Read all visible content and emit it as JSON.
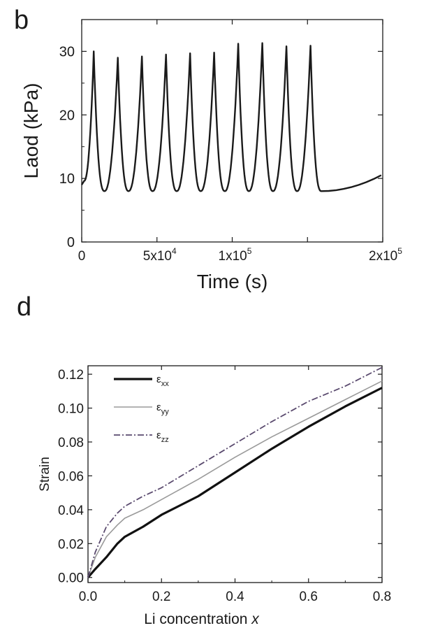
{
  "panels": {
    "b": "b",
    "d": "d"
  },
  "chart_data": [
    {
      "type": "line",
      "panel": "b",
      "title": "",
      "xlabel": "Time (s)",
      "ylabel": "Laod (kPa)",
      "xlim": [
        0,
        200000
      ],
      "ylim": [
        0,
        35
      ],
      "yticks": [
        0,
        10,
        20,
        30
      ],
      "ytick_labels": [
        "0",
        "10",
        "20",
        "30"
      ],
      "xticks": [
        0,
        50000,
        100000,
        150000,
        200000
      ],
      "xtick_labels": [
        {
          "base": "0",
          "exp": ""
        },
        {
          "base": "5x10",
          "exp": "4"
        },
        {
          "base": "1x10",
          "exp": "5"
        },
        {
          "base": "",
          "exp": ""
        },
        {
          "base": "2x10",
          "exp": "5"
        }
      ],
      "series": [
        {
          "name": "load",
          "color": "#1a1a1a",
          "start_value": 9,
          "end_value": 10.5,
          "cycle_troughs": [
            8,
            8,
            8,
            8,
            8,
            8,
            8,
            8,
            8,
            8
          ],
          "cycle_peaks": [
            {
              "t": 8000,
              "v": 30.0
            },
            {
              "t": 24000,
              "v": 29.0
            },
            {
              "t": 40000,
              "v": 29.2
            },
            {
              "t": 56000,
              "v": 29.5
            },
            {
              "t": 72000,
              "v": 29.7
            },
            {
              "t": 88000,
              "v": 29.8
            },
            {
              "t": 104000,
              "v": 31.2
            },
            {
              "t": 120000,
              "v": 31.3
            },
            {
              "t": 136000,
              "v": 30.8
            },
            {
              "t": 152000,
              "v": 30.9
            }
          ]
        }
      ]
    },
    {
      "type": "line",
      "panel": "d",
      "title": "",
      "xlabel_main": "Li concentration ",
      "xlabel_var": "x",
      "ylabel": "Strain",
      "xlim": [
        0,
        0.8
      ],
      "ylim": [
        -0.003,
        0.125
      ],
      "xticks": [
        0.0,
        0.2,
        0.4,
        0.6,
        0.8
      ],
      "xtick_labels": [
        "0.0",
        "0.2",
        "0.4",
        "0.6",
        "0.8"
      ],
      "yticks": [
        0.0,
        0.02,
        0.04,
        0.06,
        0.08,
        0.1,
        0.12
      ],
      "ytick_labels": [
        "0.00",
        "0.02",
        "0.04",
        "0.06",
        "0.08",
        "0.10",
        "0.12"
      ],
      "legend_position": "top-left",
      "series": [
        {
          "name": "ε",
          "sub": "xx",
          "style": "solid-thick",
          "color": "#111111",
          "x": [
            0.0,
            0.02,
            0.05,
            0.08,
            0.1,
            0.15,
            0.2,
            0.3,
            0.4,
            0.5,
            0.6,
            0.7,
            0.8
          ],
          "y": [
            0.0,
            0.005,
            0.012,
            0.02,
            0.024,
            0.03,
            0.037,
            0.048,
            0.062,
            0.076,
            0.089,
            0.101,
            0.112
          ]
        },
        {
          "name": "ε",
          "sub": "yy",
          "style": "solid-thin",
          "color": "#9a9a9a",
          "x": [
            0.0,
            0.02,
            0.05,
            0.08,
            0.1,
            0.15,
            0.2,
            0.3,
            0.4,
            0.5,
            0.6,
            0.7,
            0.8
          ],
          "y": [
            0.0,
            0.012,
            0.024,
            0.031,
            0.035,
            0.04,
            0.046,
            0.058,
            0.071,
            0.083,
            0.094,
            0.105,
            0.116
          ]
        },
        {
          "name": "ε",
          "sub": "zz",
          "style": "dashdot",
          "color": "#5a4a6e",
          "x": [
            0.0,
            0.02,
            0.05,
            0.08,
            0.1,
            0.15,
            0.2,
            0.3,
            0.4,
            0.5,
            0.6,
            0.7,
            0.8
          ],
          "y": [
            0.0,
            0.015,
            0.03,
            0.038,
            0.042,
            0.048,
            0.053,
            0.066,
            0.079,
            0.092,
            0.104,
            0.113,
            0.124
          ]
        }
      ]
    }
  ]
}
